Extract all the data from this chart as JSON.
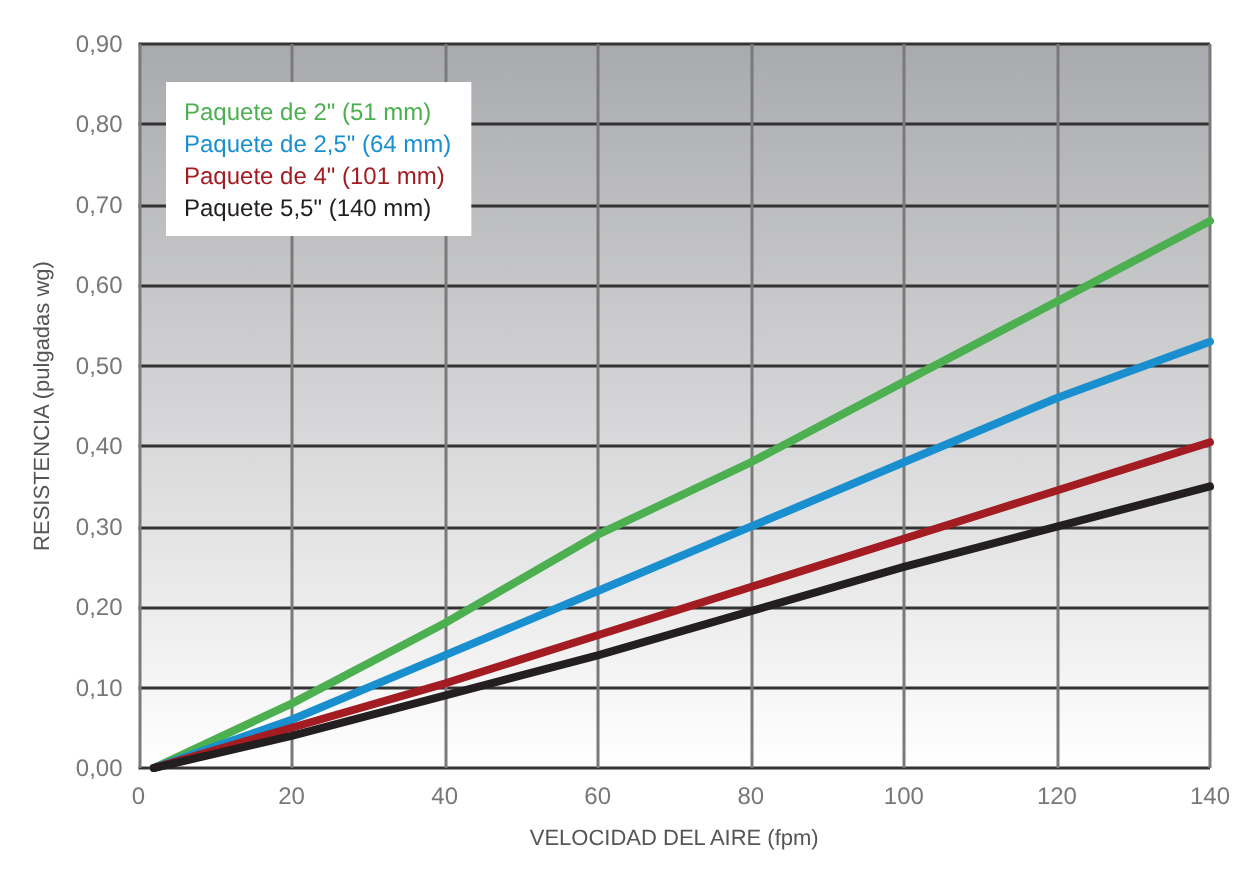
{
  "chart_data": {
    "type": "line",
    "xlabel": "VELOCIDAD DEL AIRE (fpm)",
    "ylabel": "RESISTENCIA (pulgadas wg)",
    "x": [
      2,
      20,
      40,
      60,
      80,
      100,
      120,
      140
    ],
    "series": [
      {
        "name": "Paquete de 2\" (51 mm)",
        "color": "#4caf50",
        "values": [
          0,
          0.08,
          0.18,
          0.29,
          0.38,
          0.48,
          0.58,
          0.68
        ]
      },
      {
        "name": "Paquete de 2,5\" (64 mm)",
        "color": "#1a8fd0",
        "values": [
          0,
          0.06,
          0.14,
          0.22,
          0.3,
          0.38,
          0.46,
          0.53
        ]
      },
      {
        "name": "Paquete de 4\" (101 mm)",
        "color": "#a31c22",
        "values": [
          0,
          0.05,
          0.105,
          0.165,
          0.225,
          0.285,
          0.345,
          0.405
        ]
      },
      {
        "name": "Paquete 5,5\" (140 mm)",
        "color": "#231f20",
        "values": [
          0,
          0.04,
          0.09,
          0.14,
          0.195,
          0.25,
          0.3,
          0.35
        ]
      }
    ],
    "xlim": [
      0,
      140
    ],
    "xticks": [
      0,
      20,
      40,
      60,
      80,
      100,
      120,
      140
    ],
    "ylim": [
      0,
      0.9
    ],
    "yticks": [
      {
        "value": 0,
        "label": "0,00"
      },
      {
        "value": 0.1,
        "label": "0,10"
      },
      {
        "value": 0.2,
        "label": "0,20"
      },
      {
        "value": 0.3,
        "label": "0,30"
      },
      {
        "value": 0.4,
        "label": "0,40"
      },
      {
        "value": 0.5,
        "label": "0,50"
      },
      {
        "value": 0.6,
        "label": "0,60"
      },
      {
        "value": 0.7,
        "label": "0,70"
      },
      {
        "value": 0.8,
        "label": "0,80"
      },
      {
        "value": 0.9,
        "label": "0,90"
      }
    ],
    "grid": true,
    "legend": "top left",
    "marker": "none",
    "line_style": "solid"
  }
}
